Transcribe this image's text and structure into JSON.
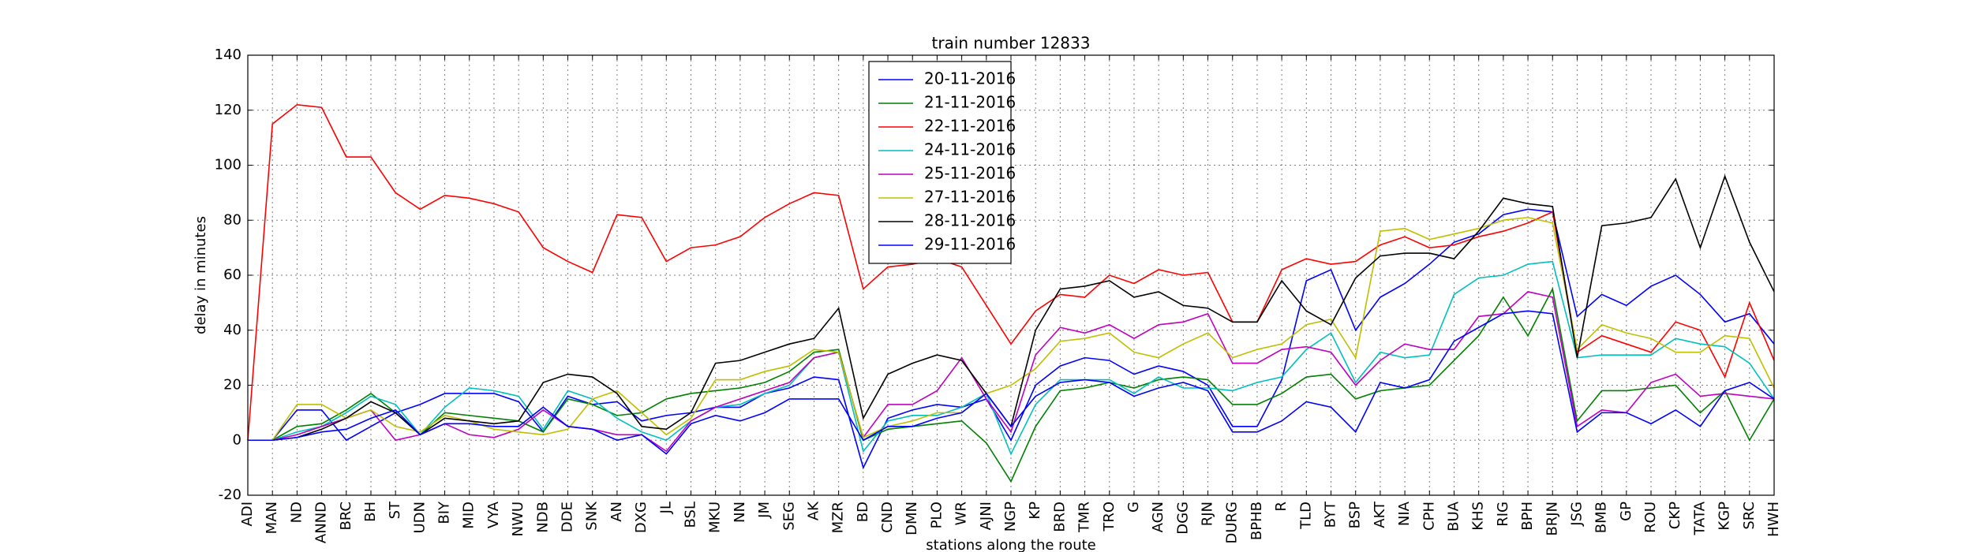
{
  "chart_data": {
    "type": "line",
    "title": "train number 12833",
    "x_label": "stations along the route",
    "y_label": "delay in minutes",
    "categories": [
      "ADI",
      "MAN",
      "ND",
      "ANND",
      "BRC",
      "BH",
      "ST",
      "UDN",
      "BIY",
      "MID",
      "VYA",
      "NWU",
      "NDB",
      "DDE",
      "SNK",
      "AN",
      "DXG",
      "JL",
      "BSL",
      "MKU",
      "NN",
      "JM",
      "SEG",
      "AK",
      "MZR",
      "BD",
      "CND",
      "DMN",
      "PLO",
      "WR",
      "AJNI",
      "NGP",
      "KP",
      "BRD",
      "TMR",
      "TRO",
      "G",
      "AGN",
      "DGG",
      "RJN",
      "DURG",
      "BPHB",
      "R",
      "TLD",
      "BYT",
      "BSP",
      "AKT",
      "NIA",
      "CPH",
      "BUA",
      "KHS",
      "RIG",
      "BPH",
      "BRJN",
      "JSG",
      "BMB",
      "GP",
      "ROU",
      "CKP",
      "TATA",
      "KGP",
      "SRC",
      "HWH"
    ],
    "ylim": [
      -20,
      140
    ],
    "yticks": [
      -20,
      0,
      20,
      40,
      60,
      80,
      100,
      120,
      140
    ],
    "grid": true,
    "legend": "upper center",
    "series": [
      {
        "name": "20-11-2016",
        "color": "#0000ff",
        "values": [
          0,
          0,
          11,
          11,
          0,
          5,
          10,
          13,
          17,
          17,
          17,
          14,
          3,
          16,
          13,
          14,
          7,
          9,
          10,
          12,
          12,
          17,
          19,
          23,
          22,
          -10,
          8,
          11,
          13,
          12,
          15,
          0,
          20,
          27,
          30,
          29,
          24,
          27,
          25,
          20,
          5,
          5,
          22,
          58,
          62,
          40,
          52,
          57,
          64,
          72,
          75,
          82,
          84,
          83,
          45,
          53,
          49,
          56,
          60,
          53,
          43,
          46,
          35
        ]
      },
      {
        "name": "21-11-2016",
        "color": "#008000",
        "values": [
          0,
          0,
          5,
          6,
          11,
          17,
          10,
          2,
          10,
          9,
          8,
          7,
          3,
          15,
          13,
          9,
          10,
          15,
          17,
          18,
          19,
          21,
          25,
          32,
          33,
          0,
          4,
          5,
          6,
          7,
          -1,
          -15,
          5,
          18,
          19,
          21,
          19,
          22,
          23,
          22,
          13,
          13,
          17,
          23,
          24,
          15,
          18,
          19,
          20,
          29,
          38,
          52,
          38,
          55,
          7,
          18,
          18,
          19,
          20,
          10,
          18,
          0,
          15
        ]
      },
      {
        "name": "22-11-2016",
        "color": "#ff0000",
        "values": [
          0,
          115,
          122,
          121,
          103,
          103,
          90,
          84,
          89,
          88,
          86,
          83,
          70,
          65,
          61,
          82,
          81,
          65,
          70,
          71,
          74,
          81,
          86,
          90,
          89,
          55,
          63,
          64,
          66,
          63,
          49,
          35,
          47,
          53,
          52,
          60,
          57,
          62,
          60,
          61,
          43,
          43,
          62,
          66,
          64,
          65,
          71,
          74,
          70,
          71,
          74,
          76,
          79,
          83,
          32,
          38,
          35,
          32,
          43,
          40,
          23,
          50,
          29
        ]
      },
      {
        "name": "24-11-2016",
        "color": "#00bfbf",
        "values": [
          0,
          0,
          3,
          5,
          10,
          16,
          13,
          2,
          12,
          19,
          18,
          16,
          4,
          18,
          15,
          8,
          3,
          0,
          7,
          12,
          13,
          17,
          20,
          30,
          32,
          -4,
          7,
          9,
          9,
          12,
          17,
          -5,
          13,
          22,
          22,
          22,
          17,
          23,
          19,
          19,
          18,
          21,
          23,
          33,
          39,
          21,
          32,
          30,
          31,
          53,
          59,
          60,
          64,
          65,
          30,
          31,
          31,
          31,
          37,
          35,
          34,
          28,
          15
        ]
      },
      {
        "name": "25-11-2016",
        "color": "#bf00bf",
        "values": [
          0,
          0,
          2,
          5,
          8,
          11,
          0,
          2,
          6,
          2,
          1,
          4,
          11,
          5,
          4,
          2,
          2,
          -4,
          7,
          12,
          15,
          18,
          21,
          30,
          32,
          1,
          13,
          13,
          18,
          30,
          15,
          3,
          31,
          41,
          39,
          42,
          37,
          42,
          43,
          46,
          28,
          28,
          33,
          34,
          32,
          20,
          29,
          35,
          33,
          33,
          45,
          46,
          54,
          52,
          5,
          11,
          10,
          21,
          24,
          16,
          17,
          16,
          15
        ]
      },
      {
        "name": "27-11-2016",
        "color": "#bfbf00",
        "values": [
          0,
          0,
          13,
          13,
          8,
          11,
          5,
          3,
          9,
          7,
          4,
          3,
          2,
          4,
          15,
          18,
          10,
          2,
          8,
          22,
          22,
          25,
          27,
          33,
          32,
          1,
          5,
          7,
          10,
          10,
          17,
          20,
          26,
          36,
          37,
          39,
          32,
          30,
          35,
          39,
          30,
          33,
          35,
          42,
          44,
          30,
          76,
          77,
          73,
          75,
          77,
          80,
          81,
          79,
          33,
          42,
          39,
          37,
          32,
          32,
          38,
          37,
          19
        ]
      },
      {
        "name": "28-11-2016",
        "color": "#000000",
        "values": [
          0,
          0,
          1,
          4,
          8,
          14,
          10,
          2,
          8,
          7,
          6,
          7,
          21,
          24,
          23,
          17,
          5,
          4,
          10,
          28,
          29,
          32,
          35,
          37,
          48,
          8,
          24,
          28,
          31,
          29,
          17,
          5,
          40,
          55,
          56,
          58,
          52,
          54,
          49,
          48,
          43,
          43,
          58,
          47,
          42,
          59,
          67,
          68,
          68,
          66,
          76,
          88,
          86,
          85,
          30,
          78,
          79,
          81,
          95,
          70,
          96,
          72,
          54
        ]
      },
      {
        "name": "29-11-2016",
        "color": "#0000ff",
        "values": [
          0,
          0,
          1,
          3,
          4,
          8,
          11,
          2,
          6,
          6,
          5,
          5,
          12,
          5,
          4,
          0,
          2,
          -5,
          6,
          9,
          7,
          10,
          15,
          15,
          15,
          0,
          5,
          5,
          8,
          10,
          17,
          5,
          16,
          21,
          22,
          21,
          16,
          19,
          21,
          18,
          3,
          3,
          7,
          14,
          12,
          3,
          21,
          19,
          22,
          36,
          41,
          46,
          47,
          46,
          3,
          10,
          10,
          6,
          11,
          5,
          18,
          21,
          15
        ]
      }
    ]
  }
}
